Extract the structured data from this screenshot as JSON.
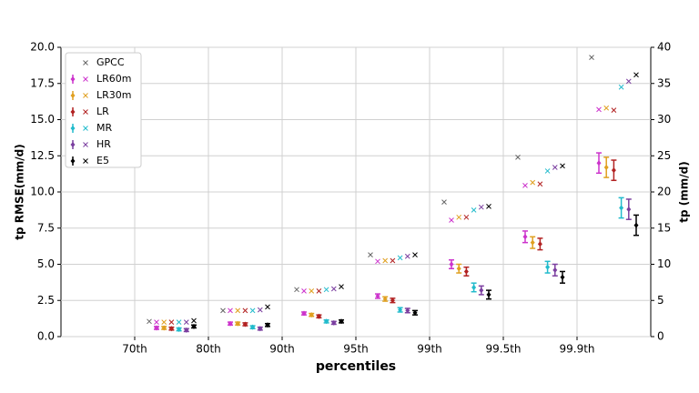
{
  "chart_data": {
    "type": "errorbar",
    "categories": [
      "70th",
      "80th",
      "90th",
      "95th",
      "99th",
      "99.5th",
      "99.9th"
    ],
    "xlabel": "percentiles",
    "ylabel": "tp RMSE(mm/d)",
    "y2label": "tp (mm/d)",
    "ylim": [
      0,
      20
    ],
    "yticks": [
      {
        "value": 0,
        "label": "0.0"
      },
      {
        "value": 2.5,
        "label": "2.5"
      },
      {
        "value": 5,
        "label": "5.0"
      },
      {
        "value": 7.5,
        "label": "7.5"
      },
      {
        "value": 10,
        "label": "10.0"
      },
      {
        "value": 12.5,
        "label": "12.5"
      },
      {
        "value": 15,
        "label": "15.0"
      },
      {
        "value": 17.5,
        "label": "17.5"
      },
      {
        "value": 20,
        "label": "20.0"
      }
    ],
    "y2lim": [
      0,
      40
    ],
    "y2ticks": [
      0,
      5,
      10,
      15,
      20,
      25,
      30,
      35,
      40
    ],
    "grid": true,
    "legend": "upper left",
    "series": [
      {
        "name": "GPCC",
        "color": "#666666",
        "axis": "y2",
        "values": [
          2.1,
          3.6,
          6.5,
          11.3,
          18.6,
          24.8,
          38.6
        ]
      },
      {
        "name": "LR60m",
        "color": "#cc33cc",
        "values": [
          0.6,
          0.9,
          1.6,
          2.8,
          5.0,
          6.9,
          12.0
        ],
        "errors": [
          0.1,
          0.1,
          0.1,
          0.15,
          0.3,
          0.4,
          0.7
        ],
        "tp_values": [
          2.0,
          3.6,
          6.3,
          10.4,
          16.1,
          20.9,
          31.4
        ]
      },
      {
        "name": "LR30m",
        "color": "#e0a020",
        "values": [
          0.6,
          0.9,
          1.5,
          2.6,
          4.7,
          6.5,
          11.7
        ],
        "errors": [
          0.1,
          0.1,
          0.1,
          0.15,
          0.3,
          0.4,
          0.7
        ],
        "tp_values": [
          2.0,
          3.6,
          6.3,
          10.5,
          16.5,
          21.3,
          31.6
        ]
      },
      {
        "name": "LR",
        "color": "#b22222",
        "values": [
          0.55,
          0.85,
          1.4,
          2.5,
          4.5,
          6.4,
          11.5
        ],
        "errors": [
          0.1,
          0.1,
          0.1,
          0.15,
          0.3,
          0.4,
          0.7
        ],
        "tp_values": [
          2.0,
          3.6,
          6.3,
          10.5,
          16.5,
          21.1,
          31.3
        ]
      },
      {
        "name": "MR",
        "color": "#22bbcc",
        "values": [
          0.5,
          0.65,
          1.05,
          1.85,
          3.4,
          4.8,
          8.9
        ],
        "errors": [
          0.1,
          0.1,
          0.1,
          0.15,
          0.3,
          0.4,
          0.7
        ],
        "tp_values": [
          2.0,
          3.6,
          6.5,
          10.9,
          17.5,
          22.9,
          34.5
        ]
      },
      {
        "name": "HR",
        "color": "#7b3fa0",
        "values": [
          0.45,
          0.55,
          0.95,
          1.8,
          3.2,
          4.6,
          8.8
        ],
        "errors": [
          0.1,
          0.1,
          0.1,
          0.15,
          0.3,
          0.4,
          0.7
        ],
        "tp_values": [
          2.0,
          3.7,
          6.6,
          11.1,
          17.9,
          23.4,
          35.3
        ]
      },
      {
        "name": "E5",
        "color": "#000000",
        "values": [
          0.7,
          0.8,
          1.05,
          1.65,
          2.9,
          4.1,
          7.7
        ],
        "errors": [
          0.1,
          0.1,
          0.1,
          0.15,
          0.3,
          0.4,
          0.7
        ],
        "tp_values": [
          2.2,
          4.1,
          6.9,
          11.3,
          18.0,
          23.6,
          36.2
        ]
      }
    ]
  }
}
